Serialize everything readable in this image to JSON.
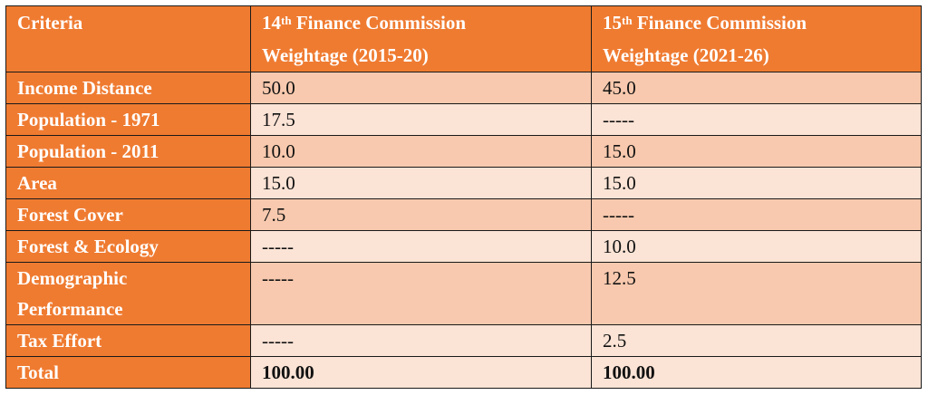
{
  "header": {
    "criteria": "Criteria",
    "col1_prefix": "14",
    "col1_sup": "th",
    "col1_line1_rest": " Finance Commission",
    "col1_line2": "Weightage (2015-20)",
    "col2_prefix": "15",
    "col2_sup": "th",
    "col2_line1_rest": " Finance Commission",
    "col2_line2": "Weightage (2021-26)"
  },
  "rows": [
    {
      "criteria": "Income Distance",
      "fc14": "50.0",
      "fc15": "45.0"
    },
    {
      "criteria": "Population - 1971",
      "fc14": "17.5",
      "fc15": "-----"
    },
    {
      "criteria": "Population - 2011",
      "fc14": "10.0",
      "fc15": "15.0"
    },
    {
      "criteria": "Area",
      "fc14": "15.0",
      "fc15": "15.0"
    },
    {
      "criteria": "Forest Cover",
      "fc14": "7.5",
      "fc15": "-----"
    },
    {
      "criteria": "Forest & Ecology",
      "fc14": "-----",
      "fc15": "10.0"
    },
    {
      "criteria_line1": "Demographic",
      "criteria_line2": "Performance",
      "fc14": "-----",
      "fc15": "12.5"
    },
    {
      "criteria": "Tax Effort",
      "fc14": "-----",
      "fc15": "2.5"
    }
  ],
  "total": {
    "criteria": "Total",
    "fc14": "100.00",
    "fc15": "100.00"
  },
  "colors": {
    "header_bg": "#ef7b31",
    "row_dark": "#f8c9ae",
    "row_light": "#fbe3d5"
  }
}
